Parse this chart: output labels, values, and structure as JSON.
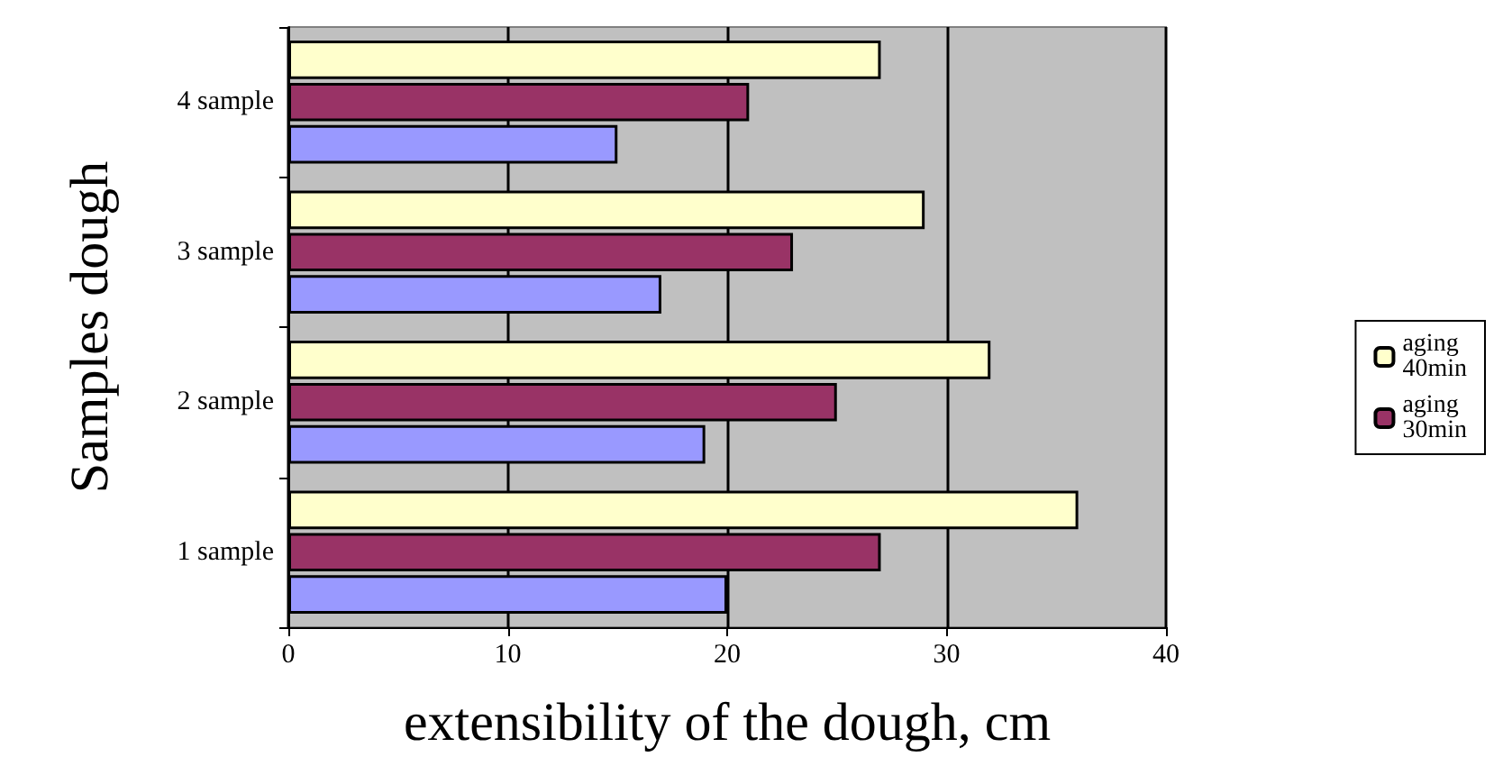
{
  "chart_data": {
    "type": "bar",
    "orientation": "horizontal",
    "xlabel": "extensibility of the dough, cm",
    "ylabel": "Samples dough",
    "categories": [
      "4 sample",
      "3 sample",
      "2 sample",
      "1 sample"
    ],
    "series": [
      {
        "name": "aging 40min",
        "color": "#ffffcc",
        "values": [
          27,
          29,
          32,
          36
        ]
      },
      {
        "name": "aging 30min",
        "color": "#993366",
        "values": [
          21,
          23,
          25,
          27
        ]
      },
      {
        "color": "#9999ff",
        "values": [
          15,
          17,
          19,
          20
        ]
      }
    ],
    "xlim": [
      0,
      40
    ],
    "xticks": [
      0,
      10,
      20,
      30,
      40
    ],
    "grid": "x",
    "legend": "right"
  }
}
